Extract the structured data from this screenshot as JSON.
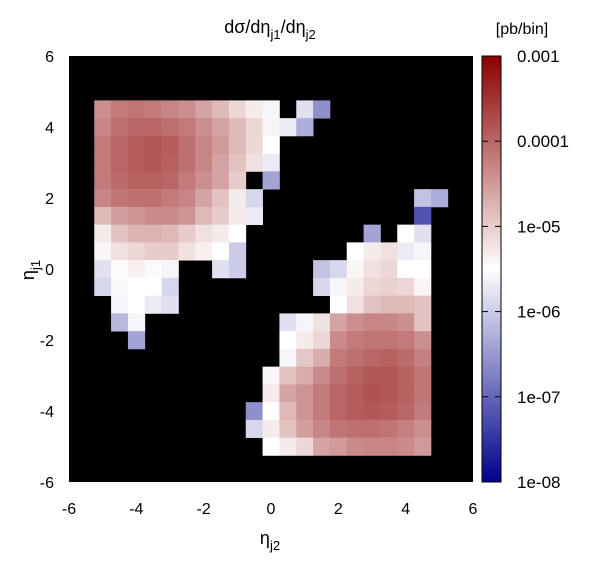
{
  "chart_data": {
    "type": "heatmap",
    "title": {
      "main": "dσ/dη",
      "sub1": "j1",
      "mid": "/dη",
      "sub2": "j2"
    },
    "xlabel": {
      "main": "η",
      "sub": "j2"
    },
    "ylabel": {
      "main": "η",
      "sub": "j1"
    },
    "xlim": [
      -6,
      6
    ],
    "ylim": [
      -6,
      6
    ],
    "xticks": [
      "-6",
      "-4",
      "-2",
      "0",
      "2",
      "4",
      "6"
    ],
    "yticks": [
      "-6",
      "-4",
      "-2",
      "0",
      "2",
      "4",
      "6"
    ],
    "colorbar": {
      "units": "[pb/bin]",
      "scale": "log",
      "range": [
        1e-08,
        0.001
      ],
      "ticks": [
        "1e-08",
        "1e-07",
        "1e-06",
        "1e-05",
        "0.0001",
        "0.001"
      ],
      "colors": [
        "#00008b",
        "#ffffff",
        "#8b0000"
      ]
    },
    "background": "#000000",
    "bin_width": 0.5,
    "cells": [
      [
        -5,
        4.5,
        -4.4
      ],
      [
        -4.5,
        4.5,
        -4.2
      ],
      [
        -4,
        4.5,
        -4.15
      ],
      [
        -3.5,
        4.5,
        -4.2
      ],
      [
        -3,
        4.5,
        -4.3
      ],
      [
        -2.5,
        4.5,
        -4.4
      ],
      [
        -2,
        4.5,
        -4.6
      ],
      [
        -1.5,
        4.5,
        -4.8
      ],
      [
        -1,
        4.5,
        -5.1
      ],
      [
        -0.5,
        4.5,
        -5.3
      ],
      [
        0,
        4.5,
        -5.6
      ],
      [
        1,
        4.5,
        -5.8
      ],
      [
        1.5,
        4.5,
        -6.6
      ],
      [
        -5,
        4,
        -4.3
      ],
      [
        -4.5,
        4,
        -4.1
      ],
      [
        -4,
        4,
        -4
      ],
      [
        -3.5,
        4,
        -4
      ],
      [
        -3,
        4,
        -4.1
      ],
      [
        -2.5,
        4,
        -4.2
      ],
      [
        -2,
        4,
        -4.4
      ],
      [
        -1.5,
        4,
        -4.6
      ],
      [
        -1,
        4,
        -4.8
      ],
      [
        -0.5,
        4,
        -5.1
      ],
      [
        0,
        4,
        -5.4
      ],
      [
        0.5,
        4,
        -5.7
      ],
      [
        1,
        4,
        -6.3
      ],
      [
        -5,
        3.5,
        -4.2
      ],
      [
        -4.5,
        3.5,
        -4
      ],
      [
        -4,
        3.5,
        -3.9
      ],
      [
        -3.5,
        3.5,
        -3.85
      ],
      [
        -3,
        3.5,
        -3.9
      ],
      [
        -2.5,
        3.5,
        -4.1
      ],
      [
        -2,
        3.5,
        -4.3
      ],
      [
        -1.5,
        3.5,
        -4.5
      ],
      [
        -1,
        3.5,
        -4.8
      ],
      [
        -0.5,
        3.5,
        -5.1
      ],
      [
        0,
        3.5,
        -5.5
      ],
      [
        -5,
        3,
        -4.2
      ],
      [
        -4.5,
        3,
        -4
      ],
      [
        -4,
        3,
        -3.9
      ],
      [
        -3.5,
        3,
        -3.85
      ],
      [
        -3,
        3,
        -3.95
      ],
      [
        -2.5,
        3,
        -4.1
      ],
      [
        -2,
        3,
        -4.3
      ],
      [
        -1.5,
        3,
        -4.6
      ],
      [
        -1,
        3,
        -4.9
      ],
      [
        -0.5,
        3,
        -5.2
      ],
      [
        0,
        3,
        -5.7
      ],
      [
        -5,
        2.5,
        -4.2
      ],
      [
        -4.5,
        2.5,
        -4.05
      ],
      [
        -4,
        2.5,
        -3.95
      ],
      [
        -3.5,
        2.5,
        -3.95
      ],
      [
        -3,
        2.5,
        -4
      ],
      [
        -2.5,
        2.5,
        -4.2
      ],
      [
        -2,
        2.5,
        -4.4
      ],
      [
        -1.5,
        2.5,
        -4.6
      ],
      [
        -1,
        2.5,
        -5
      ],
      [
        0,
        2.5,
        -6.4
      ],
      [
        -5,
        2,
        -4.3
      ],
      [
        -4.5,
        2,
        -4.15
      ],
      [
        -4,
        2,
        -4.1
      ],
      [
        -3.5,
        2,
        -4.1
      ],
      [
        -3,
        2,
        -4.2
      ],
      [
        -2.5,
        2,
        -4.3
      ],
      [
        -2,
        2,
        -4.6
      ],
      [
        -1.5,
        2,
        -4.9
      ],
      [
        -1,
        2,
        -5.3
      ],
      [
        -5,
        1.5,
        -4.8
      ],
      [
        -4.5,
        1.5,
        -4.55
      ],
      [
        -4,
        1.5,
        -4.45
      ],
      [
        -3.5,
        1.5,
        -4.35
      ],
      [
        -3,
        1.5,
        -4.35
      ],
      [
        -2.5,
        1.5,
        -4.45
      ],
      [
        -2,
        1.5,
        -4.8
      ],
      [
        -1.5,
        1.5,
        -5
      ],
      [
        -1,
        1.5,
        -5.3
      ],
      [
        -0.5,
        1.5,
        -5.7
      ],
      [
        -5,
        1,
        -5.3
      ],
      [
        -4.5,
        1,
        -4.9
      ],
      [
        -4,
        1,
        -4.75
      ],
      [
        -3.5,
        1,
        -4.75
      ],
      [
        -3,
        1,
        -4.8
      ],
      [
        -2.5,
        1,
        -5
      ],
      [
        -2,
        1,
        -5.2
      ],
      [
        -1.5,
        1,
        -5.3
      ],
      [
        -1,
        1,
        -5.5
      ],
      [
        -5,
        0.5,
        -5.4
      ],
      [
        -4.5,
        0.5,
        -5.2
      ],
      [
        -4,
        0.5,
        -5.1
      ],
      [
        -3.5,
        0.5,
        -5
      ],
      [
        -3,
        0.5,
        -5
      ],
      [
        -2.5,
        0.5,
        -5.2
      ],
      [
        -2,
        0.5,
        -5.35
      ],
      [
        -1.5,
        0.5,
        -5.5
      ],
      [
        -1,
        0.5,
        -6
      ],
      [
        -5,
        0,
        -5.8
      ],
      [
        -4.5,
        0,
        -5.45
      ],
      [
        -4,
        0,
        -5.35
      ],
      [
        -3.5,
        0,
        -5.45
      ],
      [
        -3,
        0,
        -5.6
      ],
      [
        -1.5,
        0,
        -5.8
      ],
      [
        -1,
        0,
        -6
      ],
      [
        -5,
        -0.5,
        -5.9
      ],
      [
        -4.5,
        -0.5,
        -5.55
      ],
      [
        -4,
        -0.5,
        -5.5
      ],
      [
        -3.5,
        -0.5,
        -5.5
      ],
      [
        -3,
        -0.5,
        -5.9
      ],
      [
        -4.5,
        -1,
        -5.6
      ],
      [
        -4,
        -1,
        -5.5
      ],
      [
        -3.5,
        -1,
        -5.7
      ],
      [
        -3,
        -1,
        -5.8
      ],
      [
        -4.5,
        -1.5,
        -6.2
      ],
      [
        -4,
        -1.5,
        -5.6
      ],
      [
        -4,
        -2,
        -6.4
      ],
      [
        4.5,
        2,
        -6.1
      ],
      [
        5,
        2,
        -6.3
      ],
      [
        4.5,
        1.5,
        -7.2
      ],
      [
        -0.5,
        2,
        -5.9
      ],
      [
        3,
        1,
        -6.4
      ],
      [
        4,
        1,
        -5.5
      ],
      [
        4.5,
        1,
        -5.8
      ],
      [
        2.5,
        0.5,
        -5.5
      ],
      [
        3,
        0.5,
        -5.3
      ],
      [
        3.5,
        0.5,
        -5.2
      ],
      [
        4,
        0.5,
        -5.7
      ],
      [
        4.5,
        0.5,
        -5.6
      ],
      [
        1.5,
        0,
        -6.1
      ],
      [
        2,
        0,
        -5.9
      ],
      [
        2.5,
        0,
        -5.4
      ],
      [
        3,
        0,
        -5.2
      ],
      [
        3.5,
        0,
        -5.1
      ],
      [
        4,
        0,
        -5.5
      ],
      [
        4.5,
        0,
        -5.5
      ],
      [
        1.5,
        -0.5,
        -5.9
      ],
      [
        2,
        -0.5,
        -5.6
      ],
      [
        2.5,
        -0.5,
        -5.3
      ],
      [
        3,
        -0.5,
        -5.1
      ],
      [
        3.5,
        -0.5,
        -5.05
      ],
      [
        4,
        -0.5,
        -5.1
      ],
      [
        4.5,
        -0.5,
        -5.4
      ],
      [
        2,
        -1,
        -5.5
      ],
      [
        2.5,
        -1,
        -5.2
      ],
      [
        3,
        -1,
        -4.9
      ],
      [
        3.5,
        -1,
        -4.8
      ],
      [
        4,
        -1,
        -4.8
      ],
      [
        4.5,
        -1,
        -4.9
      ],
      [
        0.5,
        -1.5,
        -5.8
      ],
      [
        1,
        -1.5,
        -5.6
      ],
      [
        1.5,
        -1.5,
        -5.2
      ],
      [
        2,
        -1.5,
        -4.6
      ],
      [
        2.5,
        -1.5,
        -4.4
      ],
      [
        3,
        -1.5,
        -4.3
      ],
      [
        3.5,
        -1.5,
        -4.3
      ],
      [
        4,
        -1.5,
        -4.4
      ],
      [
        4.5,
        -1.5,
        -4.9
      ],
      [
        0.5,
        -2,
        -5.5
      ],
      [
        1,
        -2,
        -5.3
      ],
      [
        1.5,
        -2,
        -5.1
      ],
      [
        2,
        -2,
        -4.35
      ],
      [
        2.5,
        -2,
        -4.2
      ],
      [
        3,
        -2,
        -4.15
      ],
      [
        3.5,
        -2,
        -4.15
      ],
      [
        4,
        -2,
        -4.2
      ],
      [
        4.5,
        -2,
        -4.4
      ],
      [
        0.5,
        -2.5,
        -5.6
      ],
      [
        1,
        -2.5,
        -4.95
      ],
      [
        1.5,
        -2.5,
        -4.7
      ],
      [
        2,
        -2.5,
        -4.2
      ],
      [
        2.5,
        -2.5,
        -4.1
      ],
      [
        3,
        -2.5,
        -4
      ],
      [
        3.5,
        -2.5,
        -3.95
      ],
      [
        4,
        -2.5,
        -4.05
      ],
      [
        4.5,
        -2.5,
        -4.25
      ],
      [
        0,
        -3,
        -5.4
      ],
      [
        0.5,
        -3,
        -4.9
      ],
      [
        1,
        -3,
        -4.7
      ],
      [
        1.5,
        -3,
        -4.35
      ],
      [
        2,
        -3,
        -4.1
      ],
      [
        2.5,
        -3,
        -3.95
      ],
      [
        3,
        -3,
        -3.85
      ],
      [
        3.5,
        -3,
        -3.85
      ],
      [
        4,
        -3,
        -3.95
      ],
      [
        4.5,
        -3,
        -4.15
      ],
      [
        0,
        -3.5,
        -5.3
      ],
      [
        0.5,
        -3.5,
        -4.6
      ],
      [
        1,
        -3.5,
        -4.45
      ],
      [
        1.5,
        -3.5,
        -4.2
      ],
      [
        2,
        -3.5,
        -4
      ],
      [
        2.5,
        -3.5,
        -3.9
      ],
      [
        3,
        -3.5,
        -3.8
      ],
      [
        3.5,
        -3.5,
        -3.85
      ],
      [
        4,
        -3.5,
        -3.95
      ],
      [
        4.5,
        -3.5,
        -4.15
      ],
      [
        -0.5,
        -4,
        -6.6
      ],
      [
        0,
        -4,
        -5.5
      ],
      [
        0.5,
        -4,
        -4.8
      ],
      [
        1,
        -4,
        -4.45
      ],
      [
        1.5,
        -4,
        -4.2
      ],
      [
        2,
        -4,
        -4
      ],
      [
        2.5,
        -4,
        -3.9
      ],
      [
        3,
        -4,
        -3.85
      ],
      [
        3.5,
        -4,
        -3.9
      ],
      [
        4,
        -4,
        -4
      ],
      [
        4.5,
        -4,
        -4.2
      ],
      [
        -0.5,
        -4.5,
        -5.9
      ],
      [
        0,
        -4.5,
        -5.3
      ],
      [
        0.5,
        -4.5,
        -4.9
      ],
      [
        1,
        -4.5,
        -4.55
      ],
      [
        1.5,
        -4.5,
        -4.3
      ],
      [
        2,
        -4.5,
        -4.15
      ],
      [
        2.5,
        -4.5,
        -4.1
      ],
      [
        3,
        -4.5,
        -4.1
      ],
      [
        3.5,
        -4.5,
        -4.15
      ],
      [
        4,
        -4.5,
        -4.25
      ],
      [
        4.5,
        -4.5,
        -4.4
      ],
      [
        0,
        -5,
        -5.5
      ],
      [
        0.5,
        -5,
        -5.3
      ],
      [
        1,
        -5,
        -5.1
      ],
      [
        1.5,
        -5,
        -4.6
      ],
      [
        2,
        -5,
        -4.5
      ],
      [
        2.5,
        -5,
        -4.35
      ],
      [
        3,
        -5,
        -4.3
      ],
      [
        3.5,
        -5,
        -4.3
      ],
      [
        4,
        -5,
        -4.35
      ],
      [
        4.5,
        -5,
        -4.5
      ]
    ]
  }
}
